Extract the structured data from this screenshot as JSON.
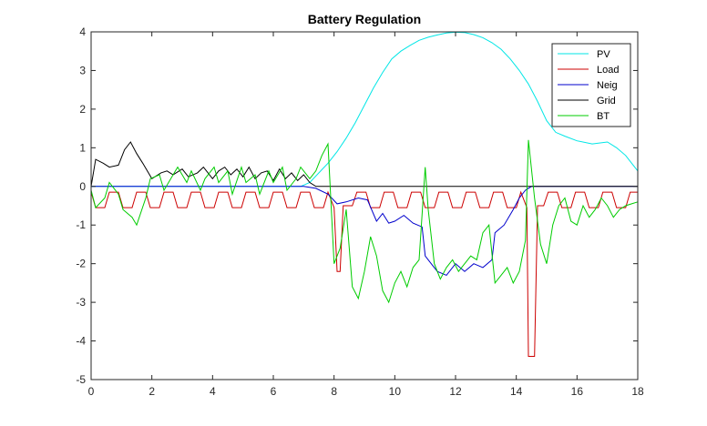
{
  "chart_data": {
    "type": "line",
    "title": "Battery Regulation",
    "xlabel": "",
    "ylabel": "",
    "xlim": [
      0,
      18
    ],
    "ylim": [
      -5,
      4
    ],
    "xticks": [
      "0",
      "2",
      "4",
      "6",
      "8",
      "10",
      "12",
      "14",
      "16",
      "18"
    ],
    "yticks": [
      "4",
      "3",
      "2",
      "1",
      "0",
      "-1",
      "-2",
      "-3",
      "-4",
      "-5"
    ],
    "grid": false,
    "legend_position": "top-right",
    "series": [
      {
        "name": "PV",
        "color": "#00e6e6",
        "x": [
          0,
          6.9,
          7.2,
          7.5,
          7.8,
          8.1,
          8.4,
          8.7,
          9.0,
          9.3,
          9.6,
          9.9,
          10.2,
          10.5,
          10.8,
          11.1,
          11.4,
          11.7,
          12.0,
          12.3,
          12.6,
          12.9,
          13.2,
          13.5,
          13.8,
          14.1,
          14.4,
          14.7,
          15.0,
          15.3,
          15.6,
          16.0,
          16.5,
          17.0,
          17.3,
          17.6,
          17.8,
          18.0
        ],
        "y": [
          0,
          0,
          0.1,
          0.35,
          0.6,
          0.9,
          1.25,
          1.65,
          2.1,
          2.55,
          2.95,
          3.3,
          3.5,
          3.65,
          3.78,
          3.86,
          3.92,
          3.97,
          3.99,
          3.98,
          3.93,
          3.85,
          3.72,
          3.55,
          3.3,
          3.0,
          2.65,
          2.2,
          1.7,
          1.4,
          1.3,
          1.18,
          1.1,
          1.15,
          1.0,
          0.8,
          0.6,
          0.4
        ]
      },
      {
        "name": "Load",
        "color": "#cc0000",
        "x": [
          0,
          0.15,
          0.45,
          0.6,
          0.9,
          1.05,
          1.35,
          1.5,
          1.8,
          1.95,
          2.25,
          2.4,
          2.7,
          2.85,
          3.15,
          3.3,
          3.6,
          3.75,
          4.05,
          4.2,
          4.5,
          4.65,
          4.95,
          5.1,
          5.4,
          5.55,
          5.85,
          6.0,
          6.3,
          6.45,
          6.75,
          6.9,
          7.2,
          7.35,
          7.65,
          7.8,
          8.0,
          8.1,
          8.2,
          8.3,
          8.6,
          8.75,
          9.05,
          9.2,
          9.5,
          9.65,
          9.95,
          10.1,
          10.4,
          10.55,
          10.85,
          11.0,
          11.3,
          11.45,
          11.75,
          11.9,
          12.2,
          12.35,
          12.65,
          12.8,
          13.1,
          13.25,
          13.55,
          13.7,
          14.0,
          14.15,
          14.35,
          14.4,
          14.6,
          14.7,
          14.9,
          15.05,
          15.35,
          15.5,
          15.8,
          15.95,
          16.25,
          16.4,
          16.7,
          16.85,
          17.15,
          17.3,
          17.6,
          17.75,
          18.0
        ],
        "y": [
          -0.15,
          -0.55,
          -0.55,
          -0.15,
          -0.15,
          -0.55,
          -0.55,
          -0.15,
          -0.15,
          -0.55,
          -0.55,
          -0.15,
          -0.15,
          -0.55,
          -0.55,
          -0.15,
          -0.15,
          -0.55,
          -0.55,
          -0.15,
          -0.15,
          -0.55,
          -0.55,
          -0.15,
          -0.15,
          -0.55,
          -0.55,
          -0.15,
          -0.15,
          -0.55,
          -0.55,
          -0.15,
          -0.15,
          -0.55,
          -0.55,
          -0.15,
          -0.55,
          -2.2,
          -2.2,
          -0.5,
          -0.5,
          -0.15,
          -0.15,
          -0.55,
          -0.55,
          -0.15,
          -0.15,
          -0.55,
          -0.55,
          -0.15,
          -0.15,
          -0.55,
          -0.55,
          -0.15,
          -0.15,
          -0.55,
          -0.55,
          -0.15,
          -0.15,
          -0.55,
          -0.55,
          -0.15,
          -0.15,
          -0.55,
          -0.55,
          -0.15,
          -0.55,
          -4.4,
          -4.4,
          -0.5,
          -0.5,
          -0.15,
          -0.15,
          -0.55,
          -0.55,
          -0.15,
          -0.15,
          -0.55,
          -0.55,
          -0.15,
          -0.15,
          -0.55,
          -0.55,
          -0.15,
          -0.15
        ]
      },
      {
        "name": "Neig",
        "color": "#0000cc",
        "x": [
          0,
          7.0,
          7.4,
          7.8,
          8.1,
          8.4,
          8.8,
          9.1,
          9.4,
          9.6,
          9.8,
          10.0,
          10.3,
          10.6,
          10.9,
          11.0,
          11.2,
          11.4,
          11.7,
          12.0,
          12.3,
          12.6,
          12.9,
          13.2,
          13.3,
          13.6,
          13.9,
          14.1,
          14.3,
          14.5,
          15.0,
          16.0,
          17.0,
          18.0
        ],
        "y": [
          0,
          0,
          -0.05,
          -0.2,
          -0.45,
          -0.4,
          -0.3,
          -0.35,
          -0.9,
          -0.7,
          -0.95,
          -0.9,
          -0.75,
          -0.95,
          -1.05,
          -1.8,
          -2.0,
          -2.2,
          -2.3,
          -2.0,
          -2.2,
          -2.0,
          -2.1,
          -1.9,
          -1.2,
          -1.0,
          -0.6,
          -0.3,
          -0.1,
          0,
          0,
          0,
          0,
          0
        ]
      },
      {
        "name": "Grid",
        "color": "#000000",
        "x": [
          0,
          0.15,
          0.4,
          0.6,
          0.9,
          1.1,
          1.3,
          1.5,
          1.7,
          2.0,
          2.3,
          2.5,
          2.7,
          3.0,
          3.2,
          3.5,
          3.7,
          4.0,
          4.2,
          4.4,
          4.6,
          4.8,
          5.0,
          5.2,
          5.4,
          5.6,
          5.8,
          6.0,
          6.2,
          6.4,
          6.6,
          6.8,
          7.0,
          7.2,
          7.4,
          7.6,
          18.0
        ],
        "y": [
          0,
          0.7,
          0.6,
          0.5,
          0.55,
          0.95,
          1.15,
          0.85,
          0.6,
          0.2,
          0.35,
          0.4,
          0.3,
          0.45,
          0.25,
          0.35,
          0.5,
          0.2,
          0.4,
          0.5,
          0.3,
          0.45,
          0.25,
          0.5,
          0.2,
          0.35,
          0.4,
          0.15,
          0.45,
          0.2,
          0.35,
          0.15,
          0.3,
          0.1,
          0,
          0,
          0
        ]
      },
      {
        "name": "BT",
        "color": "#00cc00",
        "x": [
          0,
          0.15,
          0.45,
          0.6,
          0.9,
          1.05,
          1.35,
          1.5,
          1.8,
          1.95,
          2.25,
          2.4,
          2.7,
          2.85,
          3.15,
          3.3,
          3.6,
          3.75,
          4.05,
          4.2,
          4.5,
          4.65,
          4.95,
          5.1,
          5.4,
          5.55,
          5.85,
          6.0,
          6.3,
          6.45,
          6.75,
          6.9,
          7.2,
          7.4,
          7.6,
          7.8,
          8.0,
          8.2,
          8.4,
          8.6,
          8.8,
          9.0,
          9.2,
          9.4,
          9.6,
          9.8,
          10.0,
          10.2,
          10.4,
          10.6,
          10.8,
          11.0,
          11.1,
          11.3,
          11.5,
          11.7,
          11.9,
          12.1,
          12.3,
          12.5,
          12.7,
          12.9,
          13.1,
          13.3,
          13.5,
          13.7,
          13.9,
          14.1,
          14.3,
          14.4,
          14.6,
          14.8,
          15.0,
          15.2,
          15.4,
          15.6,
          15.8,
          16.0,
          16.2,
          16.4,
          16.6,
          16.8,
          17.0,
          17.2,
          17.4,
          17.6,
          17.8,
          18.0
        ],
        "y": [
          -0.1,
          -0.55,
          -0.3,
          0.1,
          -0.2,
          -0.6,
          -0.8,
          -1.0,
          -0.3,
          0.2,
          0.3,
          -0.1,
          0.3,
          0.5,
          0.1,
          0.4,
          -0.1,
          0.2,
          0.5,
          0.1,
          0.4,
          -0.2,
          0.5,
          0.1,
          0.3,
          -0.2,
          0.4,
          0.1,
          0.5,
          -0.1,
          0.2,
          0.5,
          0.2,
          0.4,
          0.8,
          1.1,
          -2.0,
          -1.6,
          -0.6,
          -2.6,
          -2.9,
          -2.2,
          -1.3,
          -1.8,
          -2.7,
          -3.0,
          -2.5,
          -2.2,
          -2.6,
          -2.1,
          -1.9,
          0.5,
          -0.6,
          -2.0,
          -2.4,
          -2.1,
          -1.9,
          -2.2,
          -2.0,
          -1.8,
          -1.9,
          -1.2,
          -1.0,
          -2.5,
          -2.3,
          -2.1,
          -2.5,
          -2.2,
          -1.4,
          1.2,
          -0.3,
          -1.5,
          -2.0,
          -1.0,
          -0.5,
          -0.3,
          -0.9,
          -1.0,
          -0.5,
          -0.8,
          -0.6,
          -0.3,
          -0.5,
          -0.8,
          -0.6,
          -0.5,
          -0.45,
          -0.4
        ]
      }
    ]
  }
}
